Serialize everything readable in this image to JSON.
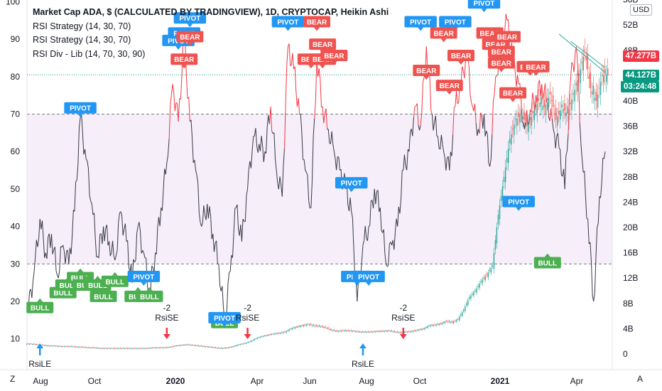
{
  "legend": {
    "title": "Market Cap ADA, $ (CALCULATED BY TRADINGVIEW), 1D, CRYPTOCAP, Heikin Ashi",
    "line2": "RSI Strategy (14, 30, 70)",
    "line3": "RSI Strategy (14, 30, 70)",
    "line4": "RSI Div - Lib (14, 70, 30, 90)"
  },
  "right_axis": {
    "currency_button": "USD",
    "price_label_red": "47.277B",
    "price_label_green": "44.127B",
    "countdown": "03:24:48"
  },
  "corner": {
    "left": "Z",
    "right": "A"
  },
  "colors": {
    "rsi_line": "#363a45",
    "rsi_overbought": "#f23645",
    "band_fill": "#f6eef9",
    "pivot": "#2196f3",
    "bear": "#ef5350",
    "bull": "#4caf50",
    "candle_up": "#26a69a",
    "candle_down": "#ef5350",
    "price_line": "#089981"
  },
  "chart_data": {
    "type": "line",
    "title": "Market Cap ADA, $ (CALCULATED BY TRADINGVIEW), 1D, CRYPTOCAP, Heikin Ashi",
    "left_axis": {
      "label": "RSI",
      "ticks": [
        10,
        20,
        30,
        40,
        50,
        60,
        70,
        80,
        90,
        100
      ],
      "range": [
        5,
        100
      ],
      "levels": [
        30,
        70
      ]
    },
    "right_axis": {
      "label": "Market Cap (USD)",
      "ticks": [
        "0",
        "4B",
        "8B",
        "12B",
        "16B",
        "20B",
        "24B",
        "28B",
        "32B",
        "36B",
        "40B",
        "44B",
        "48B",
        "52B",
        "56B"
      ],
      "range": [
        -1,
        56
      ]
    },
    "x_ticks": [
      "Aug",
      "Oct",
      "2020",
      "Apr",
      "Jun",
      "Aug",
      "Oct",
      "2021",
      "Apr"
    ],
    "series": [
      {
        "name": "RSI Div - Lib (14, 70, 30, 90)",
        "x": [
          0,
          1,
          2,
          3,
          4,
          5,
          6,
          7,
          8,
          9,
          10,
          11,
          12,
          13,
          14,
          15,
          16,
          17,
          18,
          19,
          20,
          21,
          22,
          23,
          24,
          25,
          26,
          27,
          28,
          29,
          30,
          31,
          32,
          33,
          34,
          35,
          36,
          37,
          38,
          39,
          40,
          41,
          42,
          43,
          44,
          45,
          46,
          47,
          48,
          49,
          50,
          51,
          52,
          53,
          54,
          55,
          56,
          57,
          58,
          59,
          60,
          61,
          62,
          63,
          64,
          65,
          66,
          67,
          68,
          69,
          70,
          71,
          72,
          73,
          74,
          75,
          76,
          77,
          78,
          79,
          80,
          81,
          82,
          83,
          84,
          85,
          86,
          87,
          88,
          89,
          90,
          91,
          92,
          93,
          94,
          95,
          96,
          97,
          98,
          99,
          100
        ],
        "values": [
          18,
          28,
          42,
          33,
          38,
          27,
          35,
          30,
          44,
          69,
          58,
          46,
          32,
          40,
          36,
          31,
          44,
          36,
          25,
          40,
          33,
          22,
          33,
          45,
          57,
          78,
          68,
          90,
          68,
          55,
          40,
          46,
          38,
          30,
          15,
          28,
          45,
          36,
          50,
          64,
          62,
          60,
          72,
          55,
          48,
          88,
          82,
          70,
          55,
          45,
          85,
          72,
          66,
          60,
          55,
          50,
          44,
          20,
          35,
          40,
          50,
          45,
          30,
          35,
          40,
          55,
          60,
          72,
          67,
          88,
          70,
          64,
          60,
          55,
          72,
          78,
          86,
          72,
          66,
          70,
          56,
          80,
          88,
          95,
          84,
          78,
          66,
          71,
          75,
          78,
          73,
          66,
          61,
          50,
          79,
          88,
          58,
          42,
          20,
          48,
          60
        ]
      },
      {
        "name": "Market Cap ADA (Heikin Ashi close)",
        "x": [
          0,
          1,
          2,
          3,
          4,
          5,
          6,
          7,
          8,
          9,
          10,
          11,
          12,
          13,
          14,
          15,
          16,
          17,
          18,
          19,
          20,
          21,
          22,
          23,
          24,
          25,
          26,
          27,
          28,
          29,
          30,
          31,
          32,
          33,
          34,
          35,
          36,
          37,
          38,
          39,
          40,
          41,
          42,
          43,
          44,
          45,
          46,
          47,
          48,
          49,
          50,
          51,
          52,
          53,
          54,
          55,
          56,
          57,
          58,
          59,
          60,
          61,
          62,
          63,
          64,
          65,
          66,
          67,
          68,
          69,
          70,
          71,
          72,
          73,
          74,
          75,
          76,
          77,
          78,
          79,
          80,
          81,
          82,
          83,
          84,
          85,
          86,
          87,
          88,
          89,
          90,
          91,
          92,
          93,
          94,
          95,
          96,
          97,
          98,
          99,
          100
        ],
        "values": [
          1.6,
          1.5,
          1.4,
          1.3,
          1.3,
          1.2,
          1.2,
          1.2,
          1.1,
          1.1,
          1.0,
          1.0,
          0.9,
          0.9,
          0.9,
          0.9,
          0.9,
          0.9,
          0.9,
          0.9,
          0.9,
          1.0,
          1.0,
          1.0,
          1.1,
          1.3,
          1.4,
          1.5,
          1.4,
          1.3,
          1.2,
          1.1,
          1.0,
          0.9,
          1.0,
          1.2,
          1.5,
          1.7,
          2.0,
          2.5,
          2.8,
          3.0,
          3.2,
          3.3,
          3.5,
          4.0,
          4.3,
          4.5,
          4.7,
          4.5,
          4.4,
          4.2,
          3.8,
          3.6,
          3.7,
          3.7,
          3.6,
          3.5,
          3.5,
          3.5,
          3.6,
          3.6,
          3.7,
          3.5,
          3.4,
          3.5,
          3.6,
          3.8,
          4.0,
          4.5,
          4.6,
          4.8,
          5.2,
          5.0,
          5.5,
          7.0,
          9.0,
          10.0,
          11.5,
          12.5,
          14.0,
          22.0,
          28.0,
          34.0,
          37.0,
          38.0,
          36.0,
          38.0,
          40.0,
          39.0,
          41.0,
          37.0,
          39.0,
          38.0,
          41.0,
          44.0,
          48.0,
          42.0,
          40.0,
          44.0,
          44.1
        ]
      }
    ],
    "markers": [
      {
        "text": "PIVOT",
        "x": 9,
        "rsi": 69,
        "kind": "pivot"
      },
      {
        "text": "PIVOT",
        "x": 26,
        "rsi": 87,
        "kind": "pivot"
      },
      {
        "text": "PIVOT",
        "x": 27,
        "rsi": 89,
        "kind": "pivot"
      },
      {
        "text": "PIVOT",
        "x": 28,
        "rsi": 93,
        "kind": "pivot"
      },
      {
        "text": "BEAR",
        "x": 27,
        "rsi": 82,
        "kind": "bear"
      },
      {
        "text": "BEAR",
        "x": 28,
        "rsi": 88,
        "kind": "bear"
      },
      {
        "text": "PIVOT",
        "x": 45,
        "rsi": 92,
        "kind": "pivot"
      },
      {
        "text": "BEAR",
        "x": 50,
        "rsi": 92,
        "kind": "bear"
      },
      {
        "text": "BEAR",
        "x": 51,
        "rsi": 86,
        "kind": "bear"
      },
      {
        "text": "BEAR",
        "x": 49,
        "rsi": 82,
        "kind": "bear"
      },
      {
        "text": "BEAR",
        "x": 51,
        "rsi": 82,
        "kind": "bear"
      },
      {
        "text": "BEAR",
        "x": 53,
        "rsi": 83,
        "kind": "bear"
      },
      {
        "text": "PIVOT",
        "x": 56,
        "rsi": 49,
        "kind": "pivot"
      },
      {
        "text": "PIVOT",
        "x": 68,
        "rsi": 92,
        "kind": "pivot"
      },
      {
        "text": "PIVOT",
        "x": 74,
        "rsi": 92,
        "kind": "pivot"
      },
      {
        "text": "PIVOT",
        "x": 79,
        "rsi": 97,
        "kind": "pivot"
      },
      {
        "text": "BEAR",
        "x": 69,
        "rsi": 79,
        "kind": "bear"
      },
      {
        "text": "BEAR",
        "x": 72,
        "rsi": 89,
        "kind": "bear"
      },
      {
        "text": "BEAR",
        "x": 73,
        "rsi": 75,
        "kind": "bear"
      },
      {
        "text": "BEAR",
        "x": 75,
        "rsi": 83,
        "kind": "bear"
      },
      {
        "text": "BEAR",
        "x": 80,
        "rsi": 89,
        "kind": "bear"
      },
      {
        "text": "BEAR",
        "x": 81,
        "rsi": 86,
        "kind": "bear"
      },
      {
        "text": "BEAR",
        "x": 82,
        "rsi": 84,
        "kind": "bear"
      },
      {
        "text": "BEAR",
        "x": 82,
        "rsi": 81,
        "kind": "bear"
      },
      {
        "text": "BEAR",
        "x": 83,
        "rsi": 88,
        "kind": "bear"
      },
      {
        "text": "BEAR",
        "x": 84,
        "rsi": 73,
        "kind": "bear"
      },
      {
        "text": "BEAR",
        "x": 87,
        "rsi": 80,
        "kind": "bear"
      },
      {
        "text": "BEAR",
        "x": 88,
        "rsi": 80,
        "kind": "bear"
      },
      {
        "text": "PIVOT",
        "x": 85,
        "rsi": 44,
        "kind": "pivot"
      },
      {
        "text": "BULL",
        "x": 90,
        "rsi": 33,
        "kind": "bull"
      },
      {
        "text": "BULL",
        "x": 6,
        "rsi": 25,
        "kind": "bull"
      },
      {
        "text": "BULL",
        "x": 7,
        "rsi": 27,
        "kind": "bull"
      },
      {
        "text": "BULL",
        "x": 9,
        "rsi": 29,
        "kind": "bull"
      },
      {
        "text": "BULL",
        "x": 10,
        "rsi": 27,
        "kind": "bull"
      },
      {
        "text": "BULL",
        "x": 12,
        "rsi": 27,
        "kind": "bull"
      },
      {
        "text": "BULL",
        "x": 13,
        "rsi": 24,
        "kind": "bull"
      },
      {
        "text": "BULL",
        "x": 15,
        "rsi": 28,
        "kind": "bull"
      },
      {
        "text": "BULL",
        "x": 19,
        "rsi": 24,
        "kind": "bull"
      },
      {
        "text": "BULL",
        "x": 21,
        "rsi": 24,
        "kind": "bull"
      },
      {
        "text": "PIVOT",
        "x": 20,
        "rsi": 24,
        "kind": "pivot"
      },
      {
        "text": "BULL",
        "x": 2,
        "rsi": 21,
        "kind": "bull"
      },
      {
        "text": "BULL",
        "x": 34,
        "rsi": 17,
        "kind": "bull"
      },
      {
        "text": "PIVOT",
        "x": 34,
        "rsi": 13,
        "kind": "pivot"
      },
      {
        "text": "PIVOT",
        "x": 57,
        "rsi": 24,
        "kind": "pivot"
      },
      {
        "text": "PIVOT",
        "x": 59,
        "rsi": 24,
        "kind": "pivot"
      }
    ],
    "strategy_signals": [
      {
        "text": "-2\nRsiSE",
        "x": 24
      },
      {
        "text": "-2\nRsiSE",
        "x": 38
      },
      {
        "text": "-2\nRsiSE",
        "x": 65
      }
    ],
    "entry_signals": [
      {
        "text": "RsiLE",
        "x": 2
      },
      {
        "text": "RsiLE",
        "x": 58
      }
    ]
  }
}
